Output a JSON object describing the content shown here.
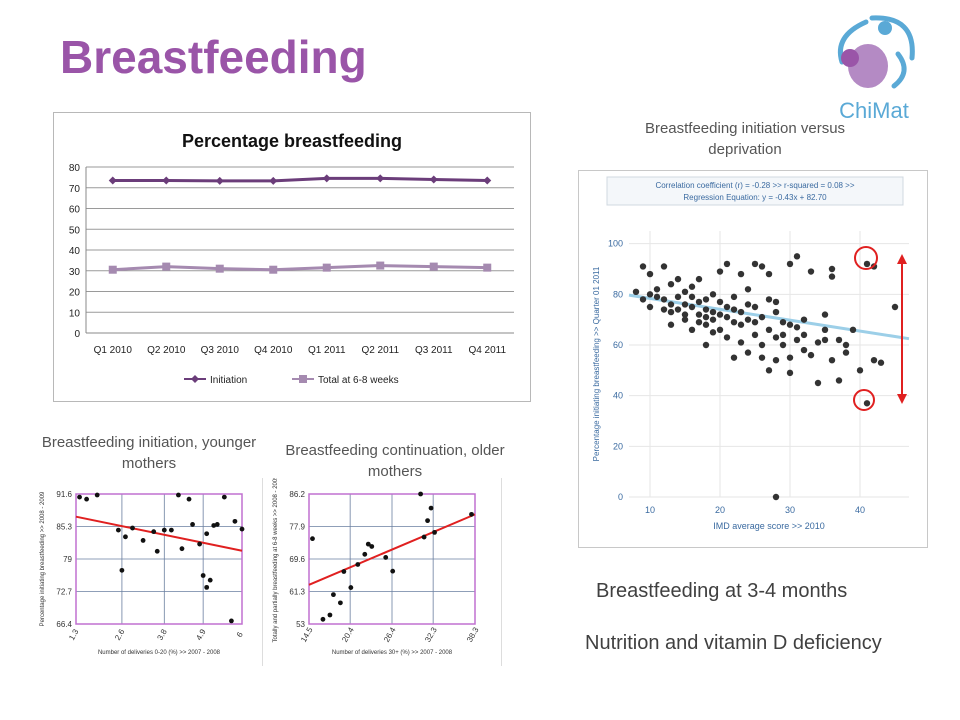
{
  "slide": {
    "title": "Breastfeeding",
    "logo_text": "ChiMat",
    "caption_deprivation": "Breastfeeding initiation versus deprivation",
    "caption_younger": "Breastfeeding initiation, younger mothers",
    "caption_older": "Breastfeeding continuation, older mothers",
    "note_3_4_months": "Breastfeeding at 3-4 months",
    "note_vitamin_d": "Nutrition and vitamin D deficiency",
    "colors": {
      "title": "#9a55a8",
      "logo_blue": "#5aa9d6",
      "logo_purple": "#b48ac4",
      "highlight": "#e02020"
    }
  },
  "chart_data": [
    {
      "type": "line",
      "title": "Percentage breastfeeding",
      "categories": [
        "Q1 2010",
        "Q2 2010",
        "Q3 2010",
        "Q4 2010",
        "Q1 2011",
        "Q2 2011",
        "Q3 2011",
        "Q4 2011"
      ],
      "series": [
        {
          "name": "Initiation",
          "values": [
            73.5,
            73.5,
            73.3,
            73.3,
            74.5,
            74.5,
            74,
            73.5
          ],
          "color": "#6b3d7a"
        },
        {
          "name": "Total at 6-8 weeks",
          "values": [
            30.5,
            32,
            31,
            30.5,
            31.5,
            32.5,
            32,
            31.5
          ],
          "color": "#a58ab0"
        }
      ],
      "yticks": [
        0,
        10,
        20,
        30,
        40,
        50,
        60,
        70,
        80
      ],
      "ylim": [
        0,
        80
      ],
      "grid": true,
      "legend": "bottom"
    },
    {
      "type": "scatter",
      "stats_line1": "Correlation coefficient (r) = -0.28  >> r-squared =  0.08 >>",
      "stats_line2": "Regression Equation: y = -0.43x  + 82.70",
      "xlabel": "IMD average score >> 2010",
      "ylabel": "Percentage initiating breastfeeding >> Quarter 01 2011",
      "xticks": [
        10,
        20,
        30,
        40
      ],
      "yticks": [
        0,
        20,
        40,
        60,
        80,
        100
      ],
      "xlim": [
        7,
        47
      ],
      "ylim": [
        0,
        105
      ],
      "regression": {
        "slope": -0.43,
        "intercept": 82.7
      },
      "points": [
        [
          8,
          81
        ],
        [
          9,
          91
        ],
        [
          9,
          78
        ],
        [
          10,
          80
        ],
        [
          10,
          75
        ],
        [
          10,
          88
        ],
        [
          11,
          79
        ],
        [
          11,
          82
        ],
        [
          12,
          78
        ],
        [
          12,
          74
        ],
        [
          12,
          91
        ],
        [
          13,
          84
        ],
        [
          13,
          76
        ],
        [
          13,
          73
        ],
        [
          13,
          68
        ],
        [
          14,
          79
        ],
        [
          14,
          74
        ],
        [
          14,
          86
        ],
        [
          15,
          72
        ],
        [
          15,
          81
        ],
        [
          15,
          76
        ],
        [
          15,
          70
        ],
        [
          16,
          75
        ],
        [
          16,
          66
        ],
        [
          16,
          83
        ],
        [
          16,
          79
        ],
        [
          17,
          72
        ],
        [
          17,
          77
        ],
        [
          17,
          69
        ],
        [
          17,
          86
        ],
        [
          18,
          71
        ],
        [
          18,
          74
        ],
        [
          18,
          78
        ],
        [
          18,
          68
        ],
        [
          18,
          60
        ],
        [
          19,
          73
        ],
        [
          19,
          80
        ],
        [
          19,
          65
        ],
        [
          19,
          70
        ],
        [
          20,
          72
        ],
        [
          20,
          66
        ],
        [
          20,
          89
        ],
        [
          20,
          77
        ],
        [
          21,
          71
        ],
        [
          21,
          92
        ],
        [
          21,
          63
        ],
        [
          21,
          75
        ],
        [
          22,
          69
        ],
        [
          22,
          74
        ],
        [
          22,
          79
        ],
        [
          22,
          55
        ],
        [
          23,
          68
        ],
        [
          23,
          61
        ],
        [
          23,
          73
        ],
        [
          23,
          88
        ],
        [
          24,
          70
        ],
        [
          24,
          76
        ],
        [
          24,
          57
        ],
        [
          24,
          82
        ],
        [
          25,
          92
        ],
        [
          25,
          64
        ],
        [
          25,
          69
        ],
        [
          25,
          75
        ],
        [
          26,
          91
        ],
        [
          26,
          55
        ],
        [
          26,
          71
        ],
        [
          26,
          60
        ],
        [
          27,
          78
        ],
        [
          27,
          66
        ],
        [
          27,
          88
        ],
        [
          27,
          50
        ],
        [
          28,
          63
        ],
        [
          28,
          73
        ],
        [
          28,
          54
        ],
        [
          28,
          77
        ],
        [
          29,
          64
        ],
        [
          29,
          69
        ],
        [
          29,
          60
        ],
        [
          30,
          68
        ],
        [
          30,
          49
        ],
        [
          30,
          92
        ],
        [
          30,
          55
        ],
        [
          31,
          67
        ],
        [
          31,
          62
        ],
        [
          31,
          95
        ],
        [
          32,
          58
        ],
        [
          32,
          70
        ],
        [
          32,
          64
        ],
        [
          33,
          89
        ],
        [
          33,
          56
        ],
        [
          34,
          45
        ],
        [
          34,
          61
        ],
        [
          35,
          62
        ],
        [
          35,
          72
        ],
        [
          35,
          66
        ],
        [
          36,
          87
        ],
        [
          36,
          54
        ],
        [
          36,
          90
        ],
        [
          37,
          46
        ],
        [
          37,
          62
        ],
        [
          38,
          60
        ],
        [
          38,
          57
        ],
        [
          39,
          66
        ],
        [
          40,
          50
        ],
        [
          41,
          92
        ],
        [
          41,
          37
        ],
        [
          42,
          91
        ],
        [
          42,
          54
        ],
        [
          43,
          53
        ],
        [
          45,
          75
        ],
        [
          28,
          0
        ]
      ]
    },
    {
      "type": "scatter",
      "xlabel": "Number of deliveries 0-20 (%) >> 2007 - 2008",
      "ylabel": "Percentage initiating breastfeeding >> 2008 - 2009",
      "xticks": [
        1.3,
        2.6,
        3.8,
        4.9,
        6.0
      ],
      "yticks": [
        66.4,
        72.7,
        79.0,
        85.3,
        91.6
      ],
      "xlim": [
        1.3,
        6.0
      ],
      "ylim": [
        66.4,
        91.6
      ],
      "regression_ends": [
        [
          1.3,
          87.2
        ],
        [
          6.0,
          80.6
        ]
      ],
      "points": [
        [
          1.4,
          91.0
        ],
        [
          1.6,
          90.6
        ],
        [
          1.9,
          91.4
        ],
        [
          2.5,
          84.6
        ],
        [
          2.7,
          83.3
        ],
        [
          2.9,
          85.0
        ],
        [
          3.2,
          82.6
        ],
        [
          3.5,
          84.3
        ],
        [
          3.6,
          80.5
        ],
        [
          3.8,
          84.6
        ],
        [
          4.0,
          84.6
        ],
        [
          4.2,
          91.4
        ],
        [
          4.3,
          81.0
        ],
        [
          4.5,
          90.6
        ],
        [
          4.6,
          85.7
        ],
        [
          4.8,
          81.9
        ],
        [
          5.0,
          83.9
        ],
        [
          5.2,
          85.5
        ],
        [
          5.3,
          85.7
        ],
        [
          5.5,
          91.0
        ],
        [
          5.8,
          86.3
        ],
        [
          6.0,
          84.8
        ],
        [
          2.6,
          76.8
        ],
        [
          4.9,
          75.8
        ],
        [
          5.0,
          73.5
        ],
        [
          5.1,
          74.9
        ],
        [
          5.7,
          67.0
        ]
      ]
    },
    {
      "type": "scatter",
      "xlabel": "Number of deliveries 30+ (%) >> 2007 - 2008",
      "ylabel": "Totally and partially breastfeeding at 6-8 weeks >> 2008 - 2009",
      "xticks": [
        14.5,
        20.4,
        26.4,
        32.3,
        38.3
      ],
      "yticks": [
        53.0,
        61.3,
        69.6,
        77.9,
        86.2
      ],
      "xlim": [
        14.5,
        38.3
      ],
      "ylim": [
        53.0,
        86.2
      ],
      "regression_ends": [
        [
          14.5,
          63.0
        ],
        [
          38.3,
          81.0
        ]
      ],
      "points": [
        [
          15.0,
          74.8
        ],
        [
          16.5,
          54.2
        ],
        [
          17.5,
          55.3
        ],
        [
          18.0,
          60.5
        ],
        [
          19.0,
          58.4
        ],
        [
          20.5,
          62.3
        ],
        [
          21.5,
          68.2
        ],
        [
          22.5,
          70.8
        ],
        [
          23.0,
          73.4
        ],
        [
          23.5,
          72.8
        ],
        [
          25.5,
          70.0
        ],
        [
          26.5,
          66.5
        ],
        [
          30.5,
          86.2
        ],
        [
          31.0,
          75.2
        ],
        [
          31.5,
          79.4
        ],
        [
          32.0,
          82.6
        ],
        [
          32.5,
          76.4
        ],
        [
          37.8,
          81.0
        ],
        [
          19.5,
          66.4
        ]
      ]
    }
  ]
}
